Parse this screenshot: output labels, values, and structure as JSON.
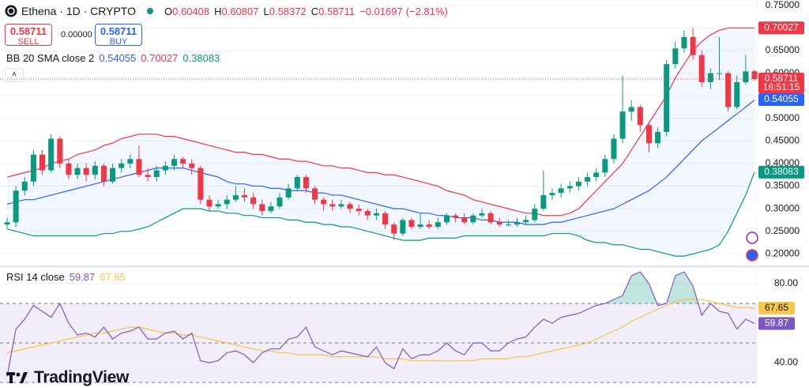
{
  "chart_data": [
    {
      "type": "candlestick",
      "title": "Ethena · 1D · CRYPTO",
      "ohlc_labels": [
        "O",
        "H",
        "L",
        "C"
      ],
      "change": "−0.01697",
      "change_pct": "(−2.81%)",
      "trade": {
        "sell_price": 0.58711,
        "sell_label": "SELL",
        "spread": "0.00000",
        "buy_price": 0.58711,
        "buy_label": "BUY"
      },
      "indicator_label": "BB 20 SMA close 2",
      "countdown": "18:51:15",
      "up_color": "#089981",
      "down_color": "#f23645",
      "open": [
        0.265,
        0.27,
        0.34,
        0.36,
        0.42,
        0.385,
        0.455,
        0.4,
        0.375,
        0.39,
        0.375,
        0.395,
        0.36,
        0.39,
        0.4,
        0.41,
        0.375,
        0.37,
        0.385,
        0.395,
        0.41,
        0.4,
        0.39,
        0.32,
        0.305,
        0.31,
        0.32,
        0.33,
        0.325,
        0.31,
        0.295,
        0.305,
        0.325,
        0.345,
        0.37,
        0.345,
        0.32,
        0.31,
        0.305,
        0.31,
        0.3,
        0.295,
        0.285,
        0.29,
        0.265,
        0.245,
        0.275,
        0.26,
        0.265,
        0.26,
        0.27,
        0.285,
        0.28,
        0.27,
        0.285,
        0.29,
        0.27,
        0.265,
        0.265,
        0.27,
        0.275,
        0.3,
        0.33,
        0.335,
        0.345,
        0.35,
        0.36,
        0.37,
        0.38,
        0.41,
        0.455,
        0.515,
        0.525,
        0.485,
        0.445,
        0.47,
        0.62,
        0.655,
        0.68,
        0.64,
        0.58,
        0.6,
        0.6,
        0.525,
        0.58,
        0.60408
      ],
      "high": [
        0.28,
        0.35,
        0.37,
        0.43,
        0.43,
        0.465,
        0.46,
        0.41,
        0.4,
        0.4,
        0.405,
        0.4,
        0.4,
        0.41,
        0.42,
        0.44,
        0.39,
        0.395,
        0.405,
        0.42,
        0.415,
        0.41,
        0.395,
        0.33,
        0.32,
        0.33,
        0.35,
        0.345,
        0.335,
        0.32,
        0.315,
        0.335,
        0.355,
        0.375,
        0.375,
        0.35,
        0.325,
        0.32,
        0.32,
        0.315,
        0.31,
        0.3,
        0.3,
        0.295,
        0.27,
        0.28,
        0.28,
        0.29,
        0.275,
        0.28,
        0.29,
        0.29,
        0.29,
        0.29,
        0.3,
        0.295,
        0.28,
        0.275,
        0.28,
        0.285,
        0.31,
        0.385,
        0.345,
        0.355,
        0.36,
        0.37,
        0.38,
        0.39,
        0.42,
        0.465,
        0.595,
        0.54,
        0.53,
        0.49,
        0.48,
        0.63,
        0.67,
        0.695,
        0.7,
        0.65,
        0.61,
        0.68,
        0.605,
        0.595,
        0.64,
        0.60807
      ],
      "low": [
        0.255,
        0.26,
        0.33,
        0.35,
        0.375,
        0.38,
        0.39,
        0.365,
        0.365,
        0.36,
        0.365,
        0.35,
        0.355,
        0.38,
        0.39,
        0.37,
        0.36,
        0.36,
        0.375,
        0.385,
        0.39,
        0.375,
        0.31,
        0.295,
        0.3,
        0.3,
        0.315,
        0.315,
        0.3,
        0.285,
        0.29,
        0.3,
        0.32,
        0.34,
        0.335,
        0.31,
        0.295,
        0.295,
        0.3,
        0.29,
        0.285,
        0.275,
        0.275,
        0.255,
        0.23,
        0.24,
        0.255,
        0.255,
        0.255,
        0.255,
        0.265,
        0.27,
        0.265,
        0.265,
        0.28,
        0.265,
        0.26,
        0.26,
        0.26,
        0.265,
        0.27,
        0.295,
        0.32,
        0.325,
        0.335,
        0.34,
        0.35,
        0.36,
        0.37,
        0.4,
        0.445,
        0.495,
        0.47,
        0.425,
        0.435,
        0.46,
        0.61,
        0.645,
        0.63,
        0.57,
        0.565,
        0.585,
        0.515,
        0.52,
        0.575,
        0.58372
      ],
      "close": [
        0.27,
        0.34,
        0.36,
        0.42,
        0.385,
        0.455,
        0.4,
        0.375,
        0.39,
        0.375,
        0.395,
        0.36,
        0.39,
        0.4,
        0.41,
        0.375,
        0.37,
        0.385,
        0.395,
        0.41,
        0.4,
        0.39,
        0.32,
        0.305,
        0.31,
        0.32,
        0.33,
        0.325,
        0.31,
        0.295,
        0.305,
        0.325,
        0.345,
        0.37,
        0.345,
        0.32,
        0.31,
        0.305,
        0.31,
        0.3,
        0.295,
        0.285,
        0.29,
        0.265,
        0.245,
        0.275,
        0.26,
        0.265,
        0.26,
        0.27,
        0.285,
        0.28,
        0.27,
        0.285,
        0.29,
        0.27,
        0.265,
        0.265,
        0.27,
        0.275,
        0.3,
        0.33,
        0.335,
        0.345,
        0.35,
        0.36,
        0.37,
        0.38,
        0.41,
        0.455,
        0.515,
        0.525,
        0.485,
        0.445,
        0.47,
        0.62,
        0.655,
        0.68,
        0.64,
        0.58,
        0.6,
        0.6,
        0.525,
        0.58,
        0.60408,
        0.58711
      ],
      "series": [
        {
          "color": "#2962ff",
          "values": [
            0.31,
            0.315,
            0.32,
            0.32,
            0.325,
            0.33,
            0.335,
            0.34,
            0.345,
            0.35,
            0.355,
            0.36,
            0.365,
            0.37,
            0.375,
            0.38,
            0.385,
            0.39,
            0.39,
            0.39,
            0.39,
            0.385,
            0.38,
            0.375,
            0.37,
            0.36,
            0.355,
            0.355,
            0.35,
            0.35,
            0.345,
            0.345,
            0.34,
            0.34,
            0.34,
            0.335,
            0.335,
            0.33,
            0.33,
            0.325,
            0.32,
            0.315,
            0.31,
            0.305,
            0.3,
            0.3,
            0.295,
            0.29,
            0.29,
            0.285,
            0.285,
            0.28,
            0.28,
            0.28,
            0.275,
            0.275,
            0.27,
            0.27,
            0.27,
            0.265,
            0.265,
            0.265,
            0.27,
            0.27,
            0.275,
            0.28,
            0.285,
            0.29,
            0.295,
            0.3,
            0.31,
            0.32,
            0.33,
            0.34,
            0.355,
            0.37,
            0.39,
            0.41,
            0.43,
            0.45,
            0.465,
            0.48,
            0.495,
            0.51,
            0.525,
            0.54055
          ]
        },
        {
          "color": "#f23645",
          "values": [
            0.37,
            0.375,
            0.38,
            0.385,
            0.39,
            0.4,
            0.405,
            0.41,
            0.42,
            0.425,
            0.43,
            0.44,
            0.445,
            0.455,
            0.46,
            0.465,
            0.465,
            0.465,
            0.46,
            0.46,
            0.455,
            0.45,
            0.445,
            0.44,
            0.435,
            0.43,
            0.425,
            0.425,
            0.42,
            0.42,
            0.415,
            0.41,
            0.41,
            0.405,
            0.405,
            0.4,
            0.395,
            0.395,
            0.39,
            0.39,
            0.385,
            0.38,
            0.38,
            0.375,
            0.375,
            0.37,
            0.365,
            0.36,
            0.355,
            0.35,
            0.34,
            0.335,
            0.33,
            0.32,
            0.315,
            0.31,
            0.305,
            0.3,
            0.295,
            0.29,
            0.29,
            0.285,
            0.285,
            0.285,
            0.29,
            0.3,
            0.32,
            0.34,
            0.36,
            0.38,
            0.4,
            0.43,
            0.46,
            0.49,
            0.52,
            0.55,
            0.59,
            0.62,
            0.65,
            0.67,
            0.685,
            0.695,
            0.7,
            0.7,
            0.7,
            0.70027
          ]
        },
        {
          "color": "#089981",
          "values": [
            0.255,
            0.25,
            0.245,
            0.24,
            0.24,
            0.24,
            0.24,
            0.24,
            0.24,
            0.24,
            0.24,
            0.245,
            0.245,
            0.25,
            0.25,
            0.255,
            0.26,
            0.27,
            0.28,
            0.29,
            0.3,
            0.3,
            0.3,
            0.295,
            0.295,
            0.29,
            0.29,
            0.285,
            0.285,
            0.28,
            0.28,
            0.28,
            0.275,
            0.275,
            0.27,
            0.27,
            0.265,
            0.265,
            0.26,
            0.26,
            0.255,
            0.25,
            0.245,
            0.24,
            0.235,
            0.23,
            0.23,
            0.23,
            0.235,
            0.235,
            0.235,
            0.235,
            0.24,
            0.24,
            0.24,
            0.24,
            0.24,
            0.24,
            0.24,
            0.24,
            0.24,
            0.24,
            0.245,
            0.245,
            0.245,
            0.24,
            0.23,
            0.225,
            0.225,
            0.22,
            0.22,
            0.215,
            0.21,
            0.21,
            0.205,
            0.2,
            0.195,
            0.195,
            0.2,
            0.205,
            0.21,
            0.22,
            0.25,
            0.29,
            0.33,
            0.38083
          ]
        }
      ],
      "ylim": [
        0.176,
        0.762
      ],
      "yticks": [
        {
          "value": 0.75,
          "label": "0.75000"
        },
        {
          "value": 0.7,
          "label": "0.70000"
        },
        {
          "value": 0.65,
          "label": "0.65000"
        },
        {
          "value": 0.6,
          "label": "0.60000"
        },
        {
          "value": 0.55,
          "label": "0.55000"
        },
        {
          "value": 0.5,
          "label": "0.50000"
        },
        {
          "value": 0.45,
          "label": "0.45000"
        },
        {
          "value": 0.4,
          "label": "0.40000"
        },
        {
          "value": 0.35,
          "label": "0.35000"
        },
        {
          "value": 0.3,
          "label": "0.30000"
        },
        {
          "value": 0.25,
          "label": "0.25000"
        },
        {
          "value": 0.2,
          "label": "0.20000"
        }
      ],
      "grid": true
    },
    {
      "type": "line",
      "title": "RSI 14 close",
      "series": [
        {
          "color": "#7e57c2",
          "values": [
            33,
            57,
            62,
            69,
            66,
            63,
            70,
            60,
            54,
            55,
            53,
            58,
            52,
            55,
            56,
            58,
            52,
            52,
            55,
            56,
            52,
            55,
            41,
            40,
            41,
            45,
            46,
            44,
            40,
            45,
            47,
            47,
            52,
            53,
            58,
            48,
            46,
            44,
            46,
            45,
            44,
            43,
            48,
            40,
            37,
            47,
            42,
            44,
            44,
            46,
            50,
            46,
            44,
            50,
            50,
            46,
            46,
            50,
            52,
            53,
            58,
            62,
            60,
            63,
            64,
            65,
            67,
            69,
            70,
            72,
            74,
            84,
            86,
            80,
            69,
            70,
            84,
            86,
            79,
            64,
            70,
            66,
            65,
            57,
            62,
            59.87
          ]
        },
        {
          "color": "#f7c548",
          "values": [
            45,
            46,
            47,
            48,
            49,
            50,
            51,
            52,
            53,
            54,
            55,
            55,
            56,
            57,
            58,
            58,
            57,
            56,
            55,
            55,
            54,
            54,
            53,
            52,
            51,
            50,
            49,
            48,
            47,
            46,
            46,
            45,
            45,
            44,
            44,
            44,
            44,
            43,
            43,
            43,
            43,
            43,
            43,
            42,
            42,
            42,
            41,
            41,
            41,
            41,
            41,
            41,
            41,
            41,
            42,
            42,
            42,
            42,
            43,
            43,
            44,
            45,
            46,
            47,
            48,
            49,
            50,
            52,
            54,
            56,
            58,
            61,
            63,
            65,
            67,
            69,
            71,
            72,
            72,
            72,
            71,
            70,
            69,
            68,
            68,
            67.65
          ]
        }
      ],
      "levels": [
        70,
        50,
        30
      ],
      "ylim": [
        27.2,
        87.6
      ],
      "yticks": [
        {
          "value": 80,
          "label": "80.00"
        },
        {
          "value": 40,
          "label": "40.00"
        }
      ]
    }
  ],
  "branding": "TradingView"
}
